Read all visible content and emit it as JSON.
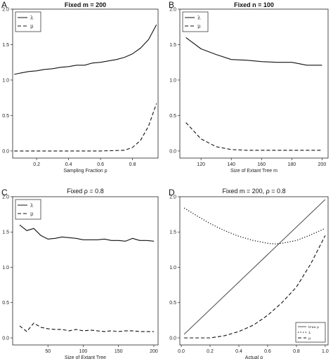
{
  "chart_data": [
    {
      "letter": "A",
      "title": "Fixed m = 200",
      "title_bold": true,
      "type": "line",
      "xlabel": "Sampling Fraction ρ",
      "ylabel": "",
      "xlim": [
        0.05,
        0.96
      ],
      "ylim": [
        -0.1,
        2.0
      ],
      "xticks": [
        0.2,
        0.4,
        0.6,
        0.8
      ],
      "xtick_labels": [
        "0.2",
        "0.4",
        "0.6",
        "0.8"
      ],
      "yticks": [
        0.0,
        0.5,
        1.0,
        1.5,
        2.0
      ],
      "ytick_labels": [
        "0.0",
        "0.5",
        "1.0",
        "1.5",
        "2.0"
      ],
      "grid": false,
      "legend_position": "top-left",
      "series": [
        {
          "name": "λ",
          "style": "solid",
          "color": "#111111",
          "x": [
            0.06,
            0.1,
            0.15,
            0.2,
            0.25,
            0.3,
            0.35,
            0.4,
            0.45,
            0.5,
            0.55,
            0.6,
            0.65,
            0.7,
            0.75,
            0.8,
            0.85,
            0.9,
            0.95
          ],
          "y": [
            1.08,
            1.1,
            1.12,
            1.13,
            1.15,
            1.16,
            1.18,
            1.19,
            1.21,
            1.21,
            1.24,
            1.25,
            1.27,
            1.29,
            1.32,
            1.37,
            1.45,
            1.57,
            1.78
          ]
        },
        {
          "name": "μ",
          "style": "dashed",
          "color": "#111111",
          "x": [
            0.06,
            0.2,
            0.4,
            0.6,
            0.75,
            0.8,
            0.85,
            0.9,
            0.95
          ],
          "y": [
            0.0,
            0.0,
            0.0,
            0.0,
            0.01,
            0.05,
            0.15,
            0.35,
            0.67
          ]
        }
      ]
    },
    {
      "letter": "B",
      "title": "Fixed n = 100",
      "title_bold": true,
      "type": "line",
      "xlabel": "Size of Extant Tree m",
      "ylabel": "",
      "xlim": [
        106,
        204
      ],
      "ylim": [
        -0.1,
        2.0
      ],
      "xticks": [
        120,
        140,
        160,
        180,
        200
      ],
      "xtick_labels": [
        "120",
        "140",
        "160",
        "180",
        "200"
      ],
      "yticks": [
        0.0,
        0.5,
        1.0,
        1.5,
        2.0
      ],
      "ytick_labels": [
        "0.0",
        "0.5",
        "1.0",
        "1.5",
        "2.0"
      ],
      "grid": false,
      "legend_position": "top-left",
      "series": [
        {
          "name": "λ",
          "style": "solid",
          "color": "#111111",
          "x": [
            110,
            120,
            130,
            140,
            150,
            160,
            170,
            180,
            190,
            200
          ],
          "y": [
            1.6,
            1.44,
            1.36,
            1.29,
            1.28,
            1.26,
            1.25,
            1.25,
            1.21,
            1.21
          ]
        },
        {
          "name": "μ",
          "style": "dashed",
          "color": "#111111",
          "x": [
            110,
            120,
            130,
            140,
            150,
            160,
            170,
            180,
            190,
            200
          ],
          "y": [
            0.4,
            0.17,
            0.06,
            0.02,
            0.01,
            0.01,
            0.01,
            0.01,
            0.01,
            0.01
          ]
        }
      ]
    },
    {
      "letter": "C",
      "title": "Fixed ρ = 0.8",
      "title_bold": false,
      "type": "line",
      "xlabel": "Size of Extant Tree",
      "ylabel": "",
      "xlim": [
        0,
        206
      ],
      "ylim": [
        -0.1,
        2.0
      ],
      "xticks": [
        50,
        100,
        150,
        200
      ],
      "xtick_labels": [
        "50",
        "100",
        "150",
        "200"
      ],
      "yticks": [
        0.0,
        0.5,
        1.0,
        1.5,
        2.0
      ],
      "ytick_labels": [
        "0.0",
        "0.5",
        "1.0",
        "1.5",
        "2.0"
      ],
      "grid": false,
      "legend_position": "top-left",
      "series": [
        {
          "name": "λ",
          "style": "solid",
          "color": "#111111",
          "x": [
            10,
            20,
            30,
            40,
            50,
            60,
            70,
            80,
            90,
            100,
            110,
            120,
            130,
            140,
            150,
            160,
            170,
            180,
            190,
            200
          ],
          "y": [
            1.6,
            1.52,
            1.55,
            1.45,
            1.4,
            1.41,
            1.43,
            1.42,
            1.41,
            1.39,
            1.39,
            1.39,
            1.4,
            1.38,
            1.38,
            1.37,
            1.41,
            1.38,
            1.38,
            1.37
          ]
        },
        {
          "name": "μ",
          "style": "dashed",
          "color": "#111111",
          "x": [
            10,
            20,
            30,
            40,
            50,
            60,
            70,
            80,
            90,
            100,
            110,
            120,
            130,
            140,
            150,
            160,
            170,
            180,
            190,
            200
          ],
          "y": [
            0.17,
            0.09,
            0.21,
            0.15,
            0.13,
            0.12,
            0.12,
            0.1,
            0.12,
            0.1,
            0.11,
            0.1,
            0.09,
            0.1,
            0.09,
            0.1,
            0.1,
            0.09,
            0.09,
            0.09
          ]
        }
      ]
    },
    {
      "letter": "D",
      "title": "Fixed m = 200, ρ = 0.8",
      "title_bold": false,
      "type": "line",
      "xlabel": "Actual ρ",
      "ylabel": "",
      "xlim": [
        -0.01,
        1.02
      ],
      "ylim": [
        -0.1,
        2.0
      ],
      "xticks": [
        0.0,
        0.2,
        0.4,
        0.6,
        0.8,
        1.0
      ],
      "xtick_labels": [
        "0.0",
        "0.2",
        "0.4",
        "0.6",
        "0.8",
        "1.0"
      ],
      "yticks": [
        0.0,
        0.5,
        1.0,
        1.5,
        2.0
      ],
      "ytick_labels": [
        "0.0",
        "0.5",
        "1.0",
        "1.5",
        "2.0"
      ],
      "grid": false,
      "legend_position": "bottom-right",
      "legend_small": true,
      "series": [
        {
          "name": "true ρ",
          "style": "solid",
          "color": "#555555",
          "x": [
            0.02,
            1.0
          ],
          "y": [
            0.05,
            1.96
          ]
        },
        {
          "name": "λ",
          "style": "dotted",
          "color": "#111111",
          "x": [
            0.02,
            0.1,
            0.2,
            0.3,
            0.4,
            0.5,
            0.6,
            0.65,
            0.7,
            0.8,
            0.9,
            1.0
          ],
          "y": [
            1.84,
            1.74,
            1.62,
            1.52,
            1.44,
            1.38,
            1.34,
            1.33,
            1.34,
            1.38,
            1.46,
            1.55
          ]
        },
        {
          "name": "μ",
          "style": "dashed",
          "color": "#111111",
          "x": [
            0.02,
            0.2,
            0.3,
            0.4,
            0.5,
            0.6,
            0.7,
            0.8,
            0.9,
            1.0
          ],
          "y": [
            0.0,
            0.0,
            0.03,
            0.09,
            0.18,
            0.32,
            0.5,
            0.72,
            1.05,
            1.45
          ]
        }
      ]
    }
  ]
}
